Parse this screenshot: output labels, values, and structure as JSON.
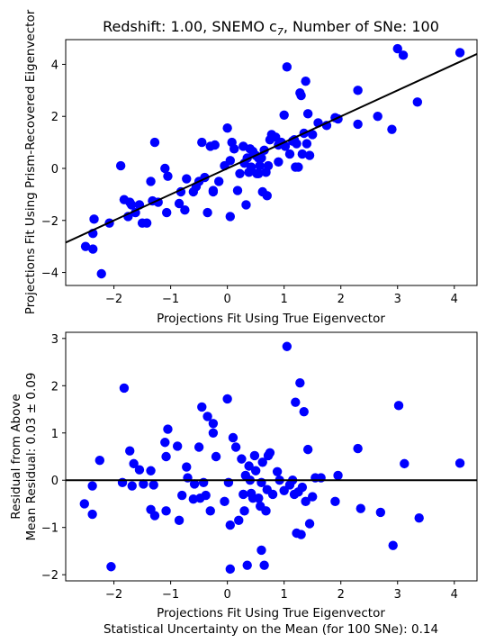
{
  "chart_data": [
    {
      "type": "scatter",
      "title": "Redshift: 1.00, SNEMO c",
      "title_subscript": "7",
      "title_suffix": ", Number of SNe: 100",
      "xlabel": "Projections Fit Using True Eigenvector",
      "ylabel": "Projections Fit Using Prism-Recovered Eigenvector",
      "xlim": [
        -2.85,
        4.4
      ],
      "ylim": [
        -4.5,
        4.95
      ],
      "xticks": [
        -2,
        -1,
        0,
        1,
        2,
        3,
        4
      ],
      "yticks": [
        -4,
        -2,
        0,
        2,
        4
      ],
      "xtick_labels": [
        "−2",
        "−1",
        "0",
        "1",
        "2",
        "3",
        "4"
      ],
      "ytick_labels": [
        "−4",
        "−2",
        "0",
        "2",
        "4"
      ],
      "marker_color": "#0000ff",
      "line_color": "#000000",
      "fit_line": {
        "x": [
          -2.85,
          4.4
        ],
        "y": [
          -2.85,
          4.4
        ]
      },
      "x": [
        -2.5,
        -2.37,
        -2.37,
        -2.35,
        -2.22,
        -2.08,
        -1.88,
        -1.82,
        -1.75,
        -1.72,
        -1.69,
        -1.62,
        -1.55,
        -1.5,
        -1.42,
        -1.35,
        -1.32,
        -1.22,
        -1.1,
        -1.07,
        -1.05,
        -0.85,
        -0.82,
        -0.75,
        -0.72,
        -0.6,
        -0.55,
        -0.5,
        -0.45,
        -0.4,
        -0.35,
        -0.3,
        -0.25,
        -0.22,
        -0.15,
        -0.05,
        0.0,
        0.05,
        0.05,
        0.08,
        0.12,
        0.18,
        0.22,
        0.28,
        0.3,
        0.33,
        0.35,
        0.38,
        0.4,
        0.42,
        0.45,
        0.5,
        0.52,
        0.55,
        0.57,
        0.6,
        0.62,
        0.65,
        0.68,
        0.7,
        0.72,
        0.75,
        0.78,
        0.85,
        0.9,
        0.95,
        1.0,
        1.02,
        1.05,
        1.1,
        1.15,
        1.2,
        1.22,
        1.25,
        1.28,
        1.3,
        1.32,
        1.35,
        1.38,
        1.4,
        1.42,
        1.45,
        1.5,
        1.6,
        1.75,
        1.9,
        1.95,
        2.3,
        2.3,
        2.65,
        2.9,
        3.0,
        3.1,
        3.35,
        4.1,
        -1.28,
        -0.25,
        0.55,
        1.18,
        0.9
      ],
      "y": [
        -3.0,
        -3.1,
        -2.5,
        -1.95,
        -4.05,
        -2.1,
        0.1,
        -1.2,
        -1.85,
        -1.3,
        -1.4,
        -1.7,
        -1.4,
        -2.1,
        -2.1,
        -0.5,
        -1.25,
        -1.3,
        0.0,
        -1.7,
        -0.3,
        -1.35,
        -0.9,
        -1.6,
        -0.4,
        -0.9,
        -0.7,
        -0.5,
        1.0,
        -0.35,
        -1.7,
        0.85,
        -0.85,
        0.9,
        -0.5,
        0.1,
        1.55,
        0.3,
        -1.85,
        1.0,
        0.75,
        -0.85,
        -0.2,
        0.85,
        0.2,
        -1.4,
        0.4,
        -0.15,
        0.75,
        0.05,
        0.65,
        0.5,
        -0.2,
        0.4,
        0.1,
        0.4,
        -0.9,
        0.7,
        -0.15,
        -1.05,
        0.1,
        1.1,
        1.3,
        1.2,
        0.9,
        1.0,
        2.05,
        0.85,
        3.9,
        0.55,
        1.05,
        0.05,
        0.95,
        0.05,
        2.9,
        2.8,
        0.55,
        1.35,
        3.35,
        0.95,
        2.1,
        0.5,
        1.3,
        1.75,
        1.65,
        1.95,
        1.9,
        3.0,
        1.7,
        2.0,
        1.5,
        4.6,
        4.35,
        2.55,
        4.45,
        1.0,
        -0.9,
        -0.2,
        1.1,
        0.25
      ]
    },
    {
      "type": "scatter",
      "xlabel": "Projections Fit Using True Eigenvector",
      "xlabel2": "Statistical Uncertainty on the Mean (for 100 SNe): 0.14",
      "ylabel": "Residual from Above",
      "ylabel2": "Mean Residual: 0.03 ± 0.09",
      "xlim": [
        -2.85,
        4.4
      ],
      "ylim": [
        -2.13,
        3.13
      ],
      "xticks": [
        -2,
        -1,
        0,
        1,
        2,
        3,
        4
      ],
      "yticks": [
        -2,
        -1,
        0,
        1,
        2,
        3
      ],
      "xtick_labels": [
        "−2",
        "−1",
        "0",
        "1",
        "2",
        "3",
        "4"
      ],
      "ytick_labels": [
        "−2",
        "−1",
        "0",
        "1",
        "2",
        "3"
      ],
      "marker_color": "#0000ff",
      "line_color": "#000000",
      "zero_line": 0,
      "x": [
        -2.52,
        -2.38,
        -2.38,
        -2.25,
        -2.05,
        -1.85,
        -1.82,
        -1.72,
        -1.68,
        -1.65,
        -1.55,
        -1.48,
        -1.35,
        -1.35,
        -1.3,
        -1.28,
        -1.1,
        -1.08,
        -1.05,
        -0.88,
        -0.85,
        -0.8,
        -0.72,
        -0.7,
        -0.6,
        -0.58,
        -0.5,
        -0.48,
        -0.45,
        -0.42,
        -0.38,
        -0.35,
        -0.3,
        -0.25,
        -0.2,
        -0.05,
        0.0,
        0.02,
        0.05,
        0.05,
        0.1,
        0.15,
        0.2,
        0.25,
        0.28,
        0.3,
        0.32,
        0.35,
        0.38,
        0.4,
        0.42,
        0.45,
        0.48,
        0.5,
        0.55,
        0.58,
        0.6,
        0.62,
        0.65,
        0.68,
        0.7,
        0.72,
        0.75,
        0.8,
        0.88,
        0.92,
        1.0,
        1.05,
        1.1,
        1.15,
        1.2,
        1.22,
        1.25,
        1.28,
        1.3,
        1.32,
        1.35,
        1.38,
        1.42,
        1.45,
        1.5,
        1.55,
        1.65,
        1.9,
        1.95,
        2.3,
        2.35,
        2.7,
        2.92,
        3.02,
        3.12,
        3.38,
        4.1,
        -1.08,
        -0.25,
        0.6,
        1.18
      ],
      "y": [
        -0.5,
        -0.72,
        -0.12,
        0.42,
        -1.83,
        -0.05,
        1.95,
        0.62,
        -0.12,
        0.35,
        0.22,
        -0.08,
        0.2,
        -0.62,
        -0.1,
        -0.75,
        0.8,
        -0.65,
        1.08,
        0.72,
        -0.85,
        -0.32,
        0.28,
        0.05,
        -0.4,
        -0.08,
        0.7,
        -0.38,
        1.55,
        -0.05,
        -0.32,
        1.35,
        -0.65,
        1.2,
        0.5,
        -0.45,
        1.72,
        -0.05,
        -0.95,
        -1.88,
        0.9,
        0.7,
        -0.85,
        0.45,
        -0.3,
        -0.65,
        0.1,
        -1.8,
        0.3,
        0.0,
        -0.28,
        -0.38,
        0.52,
        0.2,
        -0.38,
        -0.55,
        -1.48,
        0.38,
        -1.8,
        -0.65,
        -0.2,
        0.52,
        0.58,
        -0.3,
        0.18,
        0.0,
        -0.22,
        2.83,
        -0.1,
        0.0,
        1.65,
        -1.12,
        -0.25,
        2.06,
        -1.15,
        -0.15,
        1.45,
        -0.45,
        0.65,
        -0.92,
        -0.35,
        0.05,
        0.05,
        -0.45,
        0.1,
        0.67,
        -0.6,
        -0.68,
        -1.38,
        1.58,
        0.35,
        -0.8,
        0.36,
        0.5,
        1.0,
        -0.05,
        -0.3
      ]
    }
  ]
}
